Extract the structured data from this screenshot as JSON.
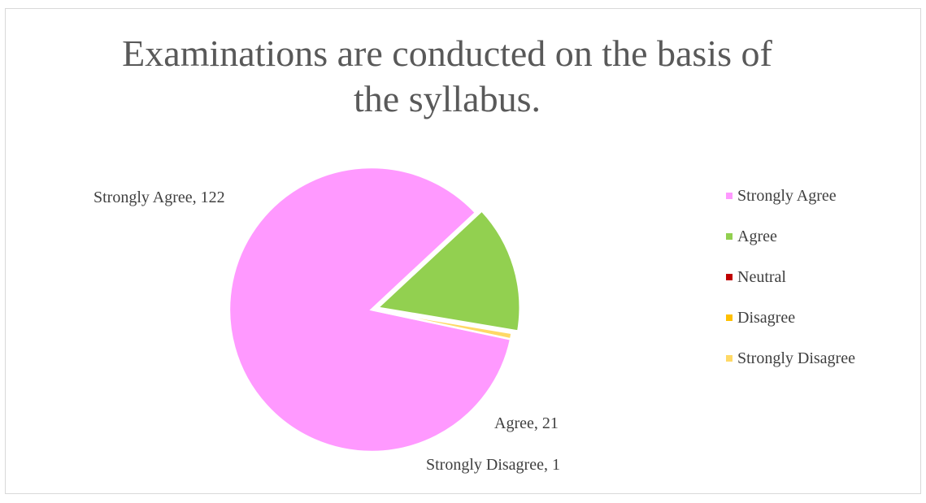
{
  "chart_data": {
    "type": "pie",
    "title": "Examinations are conducted on the basis of the syllabus.",
    "title_lines": [
      "Examinations are conducted on the basis of",
      "the syllabus."
    ],
    "categories": [
      "Strongly Agree",
      "Agree",
      "Neutral",
      "Disagree",
      "Strongly Disagree"
    ],
    "values": [
      122,
      21,
      0,
      0,
      1
    ],
    "colors": [
      "#ff99ff",
      "#92d050",
      "#c00000",
      "#ffc000",
      "#ffd966"
    ],
    "data_labels": [
      "Strongly Agree, 122",
      "Agree, 21",
      "",
      "",
      "Strongly Disagree, 1"
    ],
    "legend_position": "right",
    "start_angle_deg": 102,
    "exploded_slice": "Agree"
  }
}
